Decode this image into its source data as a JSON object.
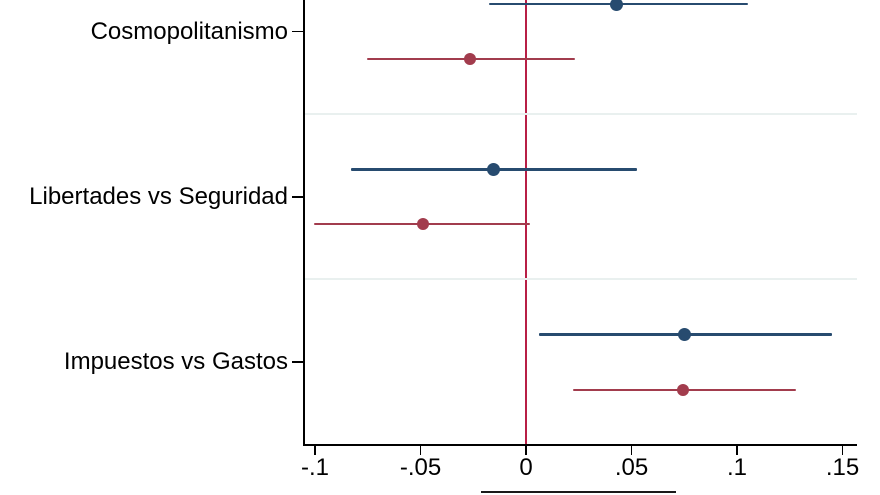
{
  "chart_data": {
    "type": "scatter",
    "subtype": "coefficient-forest-plot",
    "orientation": "horizontal",
    "title": "",
    "xlabel": "",
    "ylabel": "",
    "categories": [
      "Cosmopolitanismo",
      "Libertades vs Seguridad",
      "Impuestos vs Gastos"
    ],
    "series": [
      {
        "name": "navy-series",
        "color": "#274b6f",
        "marker": "circle",
        "estimates": [
          0.043,
          -0.0155,
          0.075
        ],
        "ci_low": [
          -0.0175,
          -0.083,
          0.006
        ],
        "ci_high": [
          0.105,
          0.0525,
          0.145
        ]
      },
      {
        "name": "maroon-series",
        "color": "#a23c4d",
        "marker": "circle",
        "estimates": [
          -0.0265,
          -0.049,
          0.0745
        ],
        "ci_low": [
          -0.0755,
          -0.1005,
          0.0225
        ],
        "ci_high": [
          0.023,
          0.002,
          0.128
        ]
      }
    ],
    "x_axis": {
      "tick_labels": [
        "-.1",
        "-.05",
        "0",
        ".05",
        ".1",
        ".15"
      ],
      "tick_values": [
        -0.1,
        -0.05,
        0,
        0.05,
        0.1,
        0.15
      ],
      "range": [
        -0.1057,
        0.1569
      ]
    },
    "reference_line": {
      "value": 0,
      "color": "#b81f46"
    },
    "grid": true,
    "gridline_color": "#e9f0ef",
    "axis_color": "#000000",
    "legend_note": "legend box cropped at bottom edge of image"
  }
}
